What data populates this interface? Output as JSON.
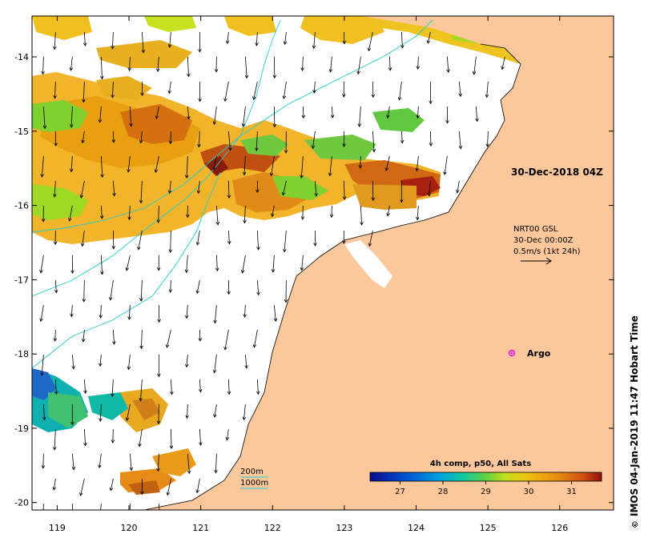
{
  "map": {
    "lon_range": [
      118.65,
      126.75
    ],
    "lat_range": [
      -20.1,
      -13.45
    ],
    "lon_ticks": [
      "119",
      "120",
      "121",
      "122",
      "123",
      "124",
      "125",
      "126"
    ],
    "lat_ticks": [
      "-14",
      "-15",
      "-16",
      "-17",
      "-18",
      "-19",
      "-20"
    ],
    "land_color": "#fcc89b",
    "sea_color": "#ffffff",
    "contour_color": "#22cccc"
  },
  "annotations": {
    "timestamp": "30-Dec-2018 04Z",
    "argo_label": "Argo",
    "argo_color": "#e020e0",
    "vector_line1": "NRT00 GSL",
    "vector_line2": "30-Dec 00:00Z",
    "vector_line3": "0.5m/s (1kt 24h)"
  },
  "contour_legend": {
    "label_200": "200m",
    "label_1000": "1000m"
  },
  "colorbar": {
    "title": "4h comp, p50, All Sats",
    "ticks": [
      "27",
      "28",
      "29",
      "30",
      "31"
    ],
    "tick_values": [
      27,
      28,
      29,
      30,
      31
    ],
    "range": [
      26.3,
      31.7
    ],
    "colors": [
      "#0a0a8c",
      "#0050d0",
      "#00a0e0",
      "#10c8a0",
      "#60d040",
      "#c0e020",
      "#f0c010",
      "#e89010",
      "#d05010",
      "#901010"
    ]
  },
  "credit": "IMOS 04-Jan-2019 11:47 Hobart Time"
}
